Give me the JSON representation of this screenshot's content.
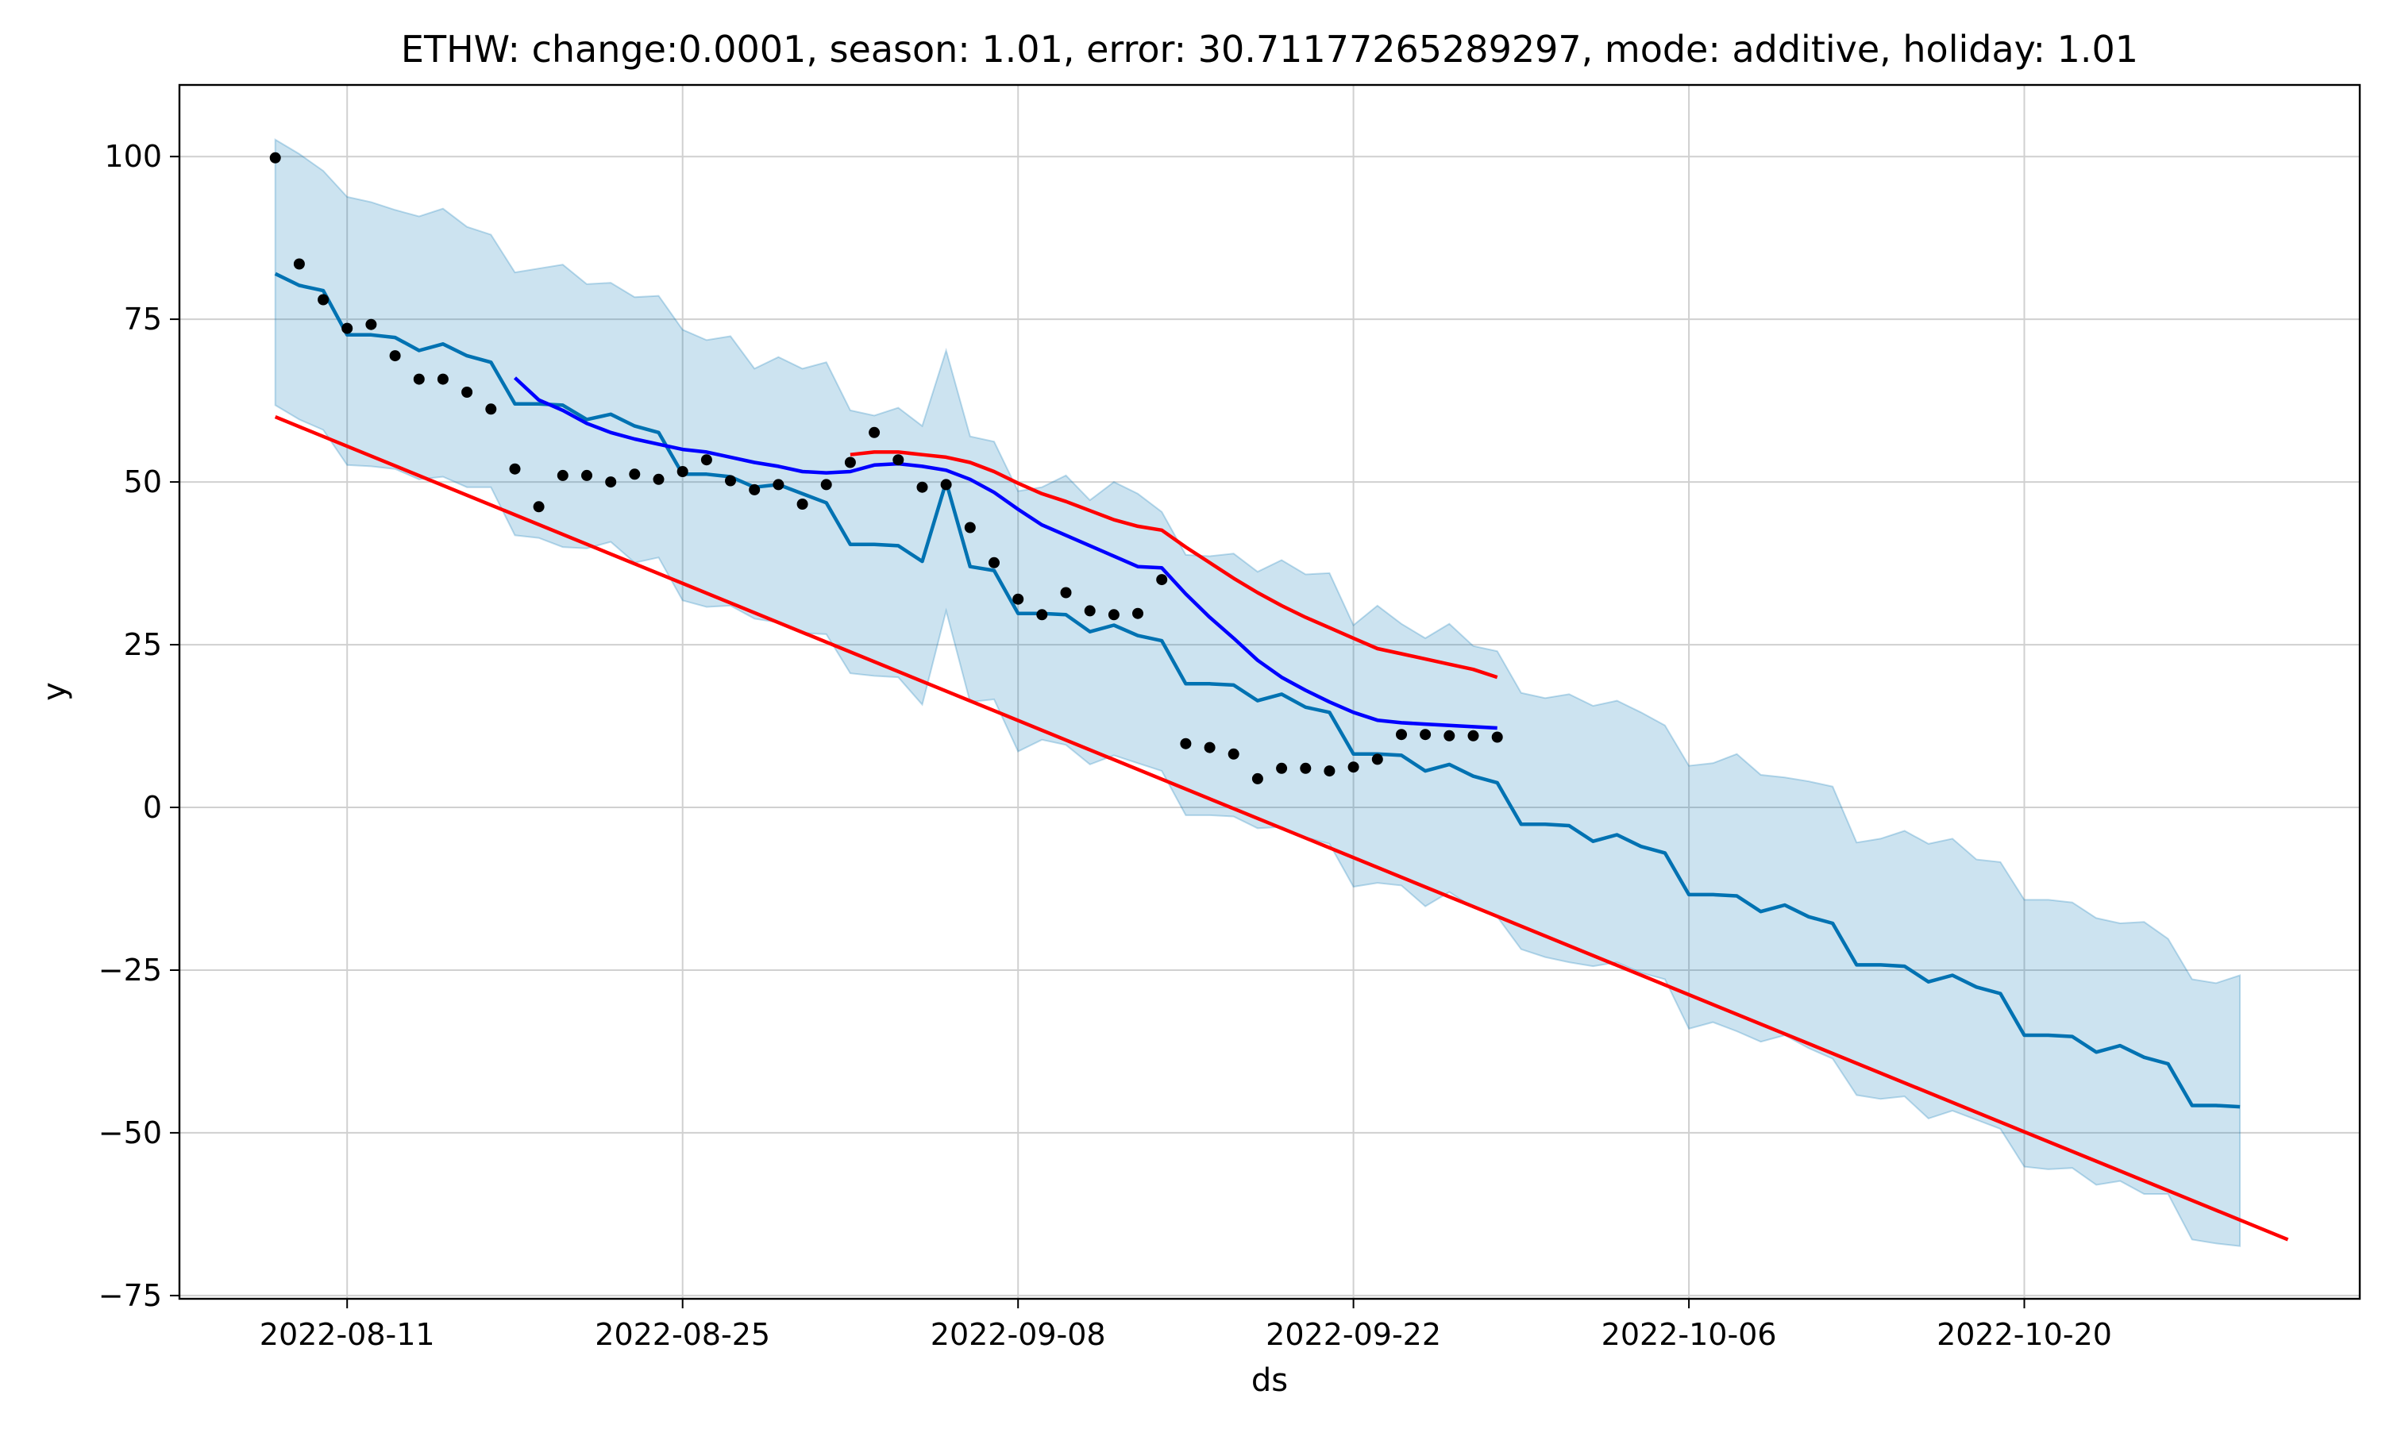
{
  "chart_data": {
    "type": "line",
    "title": "ETHW: change:0.0001, season: 1.01, error: 30.71177265289297, mode: additive, holiday: 1.01",
    "xlabel": "ds",
    "ylabel": "y",
    "x_start": "2022-08-08",
    "x_end": "2022-10-31",
    "xlim": [
      "2022-08-04",
      "2022-11-03"
    ],
    "ylim": [
      -75.5,
      111
    ],
    "x_ticks": [
      "2022-08-11",
      "2022-08-25",
      "2022-09-08",
      "2022-09-22",
      "2022-10-06",
      "2022-10-20"
    ],
    "y_ticks": [
      -75,
      -50,
      -25,
      0,
      25,
      50,
      75,
      100
    ],
    "y_tick_labels": [
      "−75",
      "−50",
      "−25",
      "0",
      "25",
      "50",
      "75",
      "100"
    ],
    "grid": true,
    "legend": "none",
    "colors": {
      "forecast": "#0072B2",
      "interval": "#0072B2",
      "observed": "#000000",
      "moving_avg": "#0000ff",
      "bound": "#ff0000",
      "grid": "#d0d0d0"
    },
    "observed": [
      [
        "2022-08-08",
        99.8
      ],
      [
        "2022-08-09",
        83.5
      ],
      [
        "2022-08-10",
        78.0
      ],
      [
        "2022-08-11",
        73.6
      ],
      [
        "2022-08-12",
        74.2
      ],
      [
        "2022-08-13",
        69.4
      ],
      [
        "2022-08-14",
        65.8
      ],
      [
        "2022-08-15",
        65.8
      ],
      [
        "2022-08-16",
        63.8
      ],
      [
        "2022-08-17",
        61.2
      ],
      [
        "2022-08-18",
        52.0
      ],
      [
        "2022-08-19",
        46.2
      ],
      [
        "2022-08-20",
        51.0
      ],
      [
        "2022-08-21",
        51.0
      ],
      [
        "2022-08-22",
        50.0
      ],
      [
        "2022-08-23",
        51.2
      ],
      [
        "2022-08-24",
        50.4
      ],
      [
        "2022-08-25",
        51.6
      ],
      [
        "2022-08-26",
        53.4
      ],
      [
        "2022-08-27",
        50.2
      ],
      [
        "2022-08-28",
        48.8
      ],
      [
        "2022-08-29",
        49.6
      ],
      [
        "2022-08-30",
        46.6
      ],
      [
        "2022-08-31",
        49.6
      ],
      [
        "2022-09-01",
        53.0
      ],
      [
        "2022-09-02",
        57.6
      ],
      [
        "2022-09-03",
        53.4
      ],
      [
        "2022-09-04",
        49.2
      ],
      [
        "2022-09-05",
        49.6
      ],
      [
        "2022-09-06",
        43.0
      ],
      [
        "2022-09-07",
        37.6
      ],
      [
        "2022-09-08",
        32.0
      ],
      [
        "2022-09-09",
        29.6
      ],
      [
        "2022-09-10",
        33.0
      ],
      [
        "2022-09-11",
        30.2
      ],
      [
        "2022-09-12",
        29.6
      ],
      [
        "2022-09-13",
        29.8
      ],
      [
        "2022-09-14",
        35.0
      ],
      [
        "2022-09-15",
        9.8
      ],
      [
        "2022-09-16",
        9.2
      ],
      [
        "2022-09-17",
        8.2
      ],
      [
        "2022-09-18",
        4.4
      ],
      [
        "2022-09-19",
        6.0
      ],
      [
        "2022-09-20",
        6.0
      ],
      [
        "2022-09-21",
        5.6
      ],
      [
        "2022-09-22",
        6.2
      ],
      [
        "2022-09-23",
        7.4
      ],
      [
        "2022-09-24",
        11.2
      ],
      [
        "2022-09-25",
        11.2
      ],
      [
        "2022-09-26",
        11.0
      ],
      [
        "2022-09-27",
        11.0
      ],
      [
        "2022-09-28",
        10.8
      ]
    ],
    "forecast": [
      82.0,
      80.2,
      79.4,
      72.6,
      72.6,
      72.2,
      70.2,
      71.2,
      69.4,
      68.4,
      62.0,
      62.0,
      61.8,
      59.6,
      60.4,
      58.6,
      57.6,
      51.2,
      51.2,
      50.8,
      49.2,
      49.6,
      48.2,
      46.8,
      40.4,
      40.4,
      40.2,
      37.8,
      50.0,
      37.0,
      36.4,
      29.8,
      29.8,
      29.6,
      27.0,
      28.0,
      26.4,
      25.6,
      19.0,
      19.0,
      18.8,
      16.4,
      17.4,
      15.4,
      14.6,
      8.2,
      8.2,
      8.0,
      5.6,
      6.6,
      4.8,
      3.8,
      -2.6,
      -2.6,
      -2.8,
      -5.2,
      -4.2,
      -6.0,
      -7.0,
      -13.4,
      -13.4,
      -13.6,
      -16.0,
      -15.0,
      -16.8,
      -17.8,
      -24.2,
      -24.2,
      -24.4,
      -26.8,
      -25.8,
      -27.6,
      -28.6,
      -35.0,
      -35.0,
      -35.2,
      -37.6,
      -36.6,
      -38.4,
      -39.4,
      -45.8,
      -45.8,
      -46.0
    ],
    "forecast_upper": [
      102.6,
      100.4,
      97.8,
      93.8,
      93.0,
      91.8,
      90.8,
      92.0,
      89.2,
      88.0,
      82.2,
      82.8,
      83.4,
      80.4,
      80.6,
      78.4,
      78.6,
      73.4,
      71.8,
      72.4,
      67.4,
      69.2,
      67.4,
      68.4,
      61.0,
      60.2,
      61.4,
      58.6,
      70.2,
      57.0,
      56.2,
      48.6,
      49.2,
      51.0,
      47.2,
      50.0,
      48.2,
      45.4,
      38.8,
      38.6,
      39.0,
      36.2,
      38.0,
      35.8,
      36.0,
      28.0,
      31.0,
      28.2,
      26.0,
      28.2,
      24.8,
      24.0,
      17.6,
      16.8,
      17.4,
      15.6,
      16.4,
      14.6,
      12.6,
      6.4,
      6.8,
      8.2,
      5.0,
      4.6,
      4.0,
      3.2,
      -5.4,
      -4.8,
      -3.6,
      -5.6,
      -4.8,
      -8.0,
      -8.4,
      -14.2,
      -14.2,
      -14.6,
      -17.0,
      -17.8,
      -17.6,
      -20.2,
      -26.4,
      -27.0,
      -25.8
    ],
    "forecast_lower": [
      61.8,
      59.6,
      58.0,
      52.6,
      52.4,
      52.0,
      50.4,
      50.8,
      49.2,
      49.2,
      41.8,
      41.4,
      40.0,
      39.8,
      40.8,
      37.6,
      38.4,
      31.8,
      30.8,
      31.0,
      29.0,
      28.4,
      26.8,
      26.6,
      20.6,
      20.2,
      20.0,
      15.8,
      30.2,
      16.2,
      16.6,
      8.6,
      10.4,
      9.6,
      6.6,
      8.0,
      6.8,
      5.6,
      -1.2,
      -1.2,
      -1.4,
      -3.2,
      -3.0,
      -4.6,
      -5.6,
      -12.2,
      -11.6,
      -12.0,
      -15.2,
      -13.0,
      -15.4,
      -16.8,
      -21.8,
      -23.0,
      -23.8,
      -24.4,
      -23.8,
      -25.4,
      -26.4,
      -34.0,
      -33.0,
      -34.4,
      -36.0,
      -35.0,
      -37.0,
      -38.6,
      -44.2,
      -44.8,
      -44.4,
      -47.8,
      -46.6,
      -48.0,
      -49.4,
      -55.2,
      -55.6,
      -55.4,
      -58.0,
      -57.4,
      -59.4,
      -59.4,
      -66.4,
      -67.0,
      -67.4
    ],
    "moving_avg": [
      [
        "2022-08-18",
        66.0
      ],
      [
        "2022-08-19",
        62.6
      ],
      [
        "2022-08-20",
        61.0
      ],
      [
        "2022-08-21",
        59.0
      ],
      [
        "2022-08-22",
        57.6
      ],
      [
        "2022-08-23",
        56.6
      ],
      [
        "2022-08-24",
        55.8
      ],
      [
        "2022-08-25",
        55.0
      ],
      [
        "2022-08-26",
        54.6
      ],
      [
        "2022-08-27",
        53.8
      ],
      [
        "2022-08-28",
        53.0
      ],
      [
        "2022-08-29",
        52.4
      ],
      [
        "2022-08-30",
        51.6
      ],
      [
        "2022-08-31",
        51.4
      ],
      [
        "2022-09-01",
        51.6
      ],
      [
        "2022-09-02",
        52.6
      ],
      [
        "2022-09-03",
        52.8
      ],
      [
        "2022-09-04",
        52.4
      ],
      [
        "2022-09-05",
        51.8
      ],
      [
        "2022-09-06",
        50.4
      ],
      [
        "2022-09-07",
        48.4
      ],
      [
        "2022-09-08",
        45.8
      ],
      [
        "2022-09-09",
        43.4
      ],
      [
        "2022-09-10",
        41.8
      ],
      [
        "2022-09-11",
        40.2
      ],
      [
        "2022-09-12",
        38.6
      ],
      [
        "2022-09-13",
        37.0
      ],
      [
        "2022-09-14",
        36.8
      ],
      [
        "2022-09-15",
        32.8
      ],
      [
        "2022-09-16",
        29.2
      ],
      [
        "2022-09-17",
        26.0
      ],
      [
        "2022-09-18",
        22.6
      ],
      [
        "2022-09-19",
        20.0
      ],
      [
        "2022-09-20",
        18.0
      ],
      [
        "2022-09-21",
        16.2
      ],
      [
        "2022-09-22",
        14.6
      ],
      [
        "2022-09-23",
        13.4
      ],
      [
        "2022-09-24",
        13.0
      ],
      [
        "2022-09-25",
        12.8
      ],
      [
        "2022-09-26",
        12.6
      ],
      [
        "2022-09-27",
        12.4
      ],
      [
        "2022-09-28",
        12.2
      ]
    ],
    "upper_curve": [
      [
        "2022-09-01",
        54.2
      ],
      [
        "2022-09-02",
        54.6
      ],
      [
        "2022-09-03",
        54.6
      ],
      [
        "2022-09-04",
        54.2
      ],
      [
        "2022-09-05",
        53.8
      ],
      [
        "2022-09-06",
        53.0
      ],
      [
        "2022-09-07",
        51.6
      ],
      [
        "2022-09-08",
        49.8
      ],
      [
        "2022-09-09",
        48.2
      ],
      [
        "2022-09-10",
        47.0
      ],
      [
        "2022-09-11",
        45.6
      ],
      [
        "2022-09-12",
        44.2
      ],
      [
        "2022-09-13",
        43.2
      ],
      [
        "2022-09-14",
        42.6
      ],
      [
        "2022-09-15",
        40.0
      ],
      [
        "2022-09-16",
        37.6
      ],
      [
        "2022-09-17",
        35.2
      ],
      [
        "2022-09-18",
        33.0
      ],
      [
        "2022-09-19",
        31.0
      ],
      [
        "2022-09-20",
        29.2
      ],
      [
        "2022-09-21",
        27.6
      ],
      [
        "2022-09-22",
        26.0
      ],
      [
        "2022-09-23",
        24.4
      ],
      [
        "2022-09-24",
        23.6
      ],
      [
        "2022-09-25",
        22.8
      ],
      [
        "2022-09-26",
        22.0
      ],
      [
        "2022-09-27",
        21.2
      ],
      [
        "2022-09-28",
        20.0
      ]
    ],
    "trend_line": [
      [
        "2022-08-08",
        60.0
      ],
      [
        "2022-10-31",
        -66.4
      ]
    ]
  }
}
